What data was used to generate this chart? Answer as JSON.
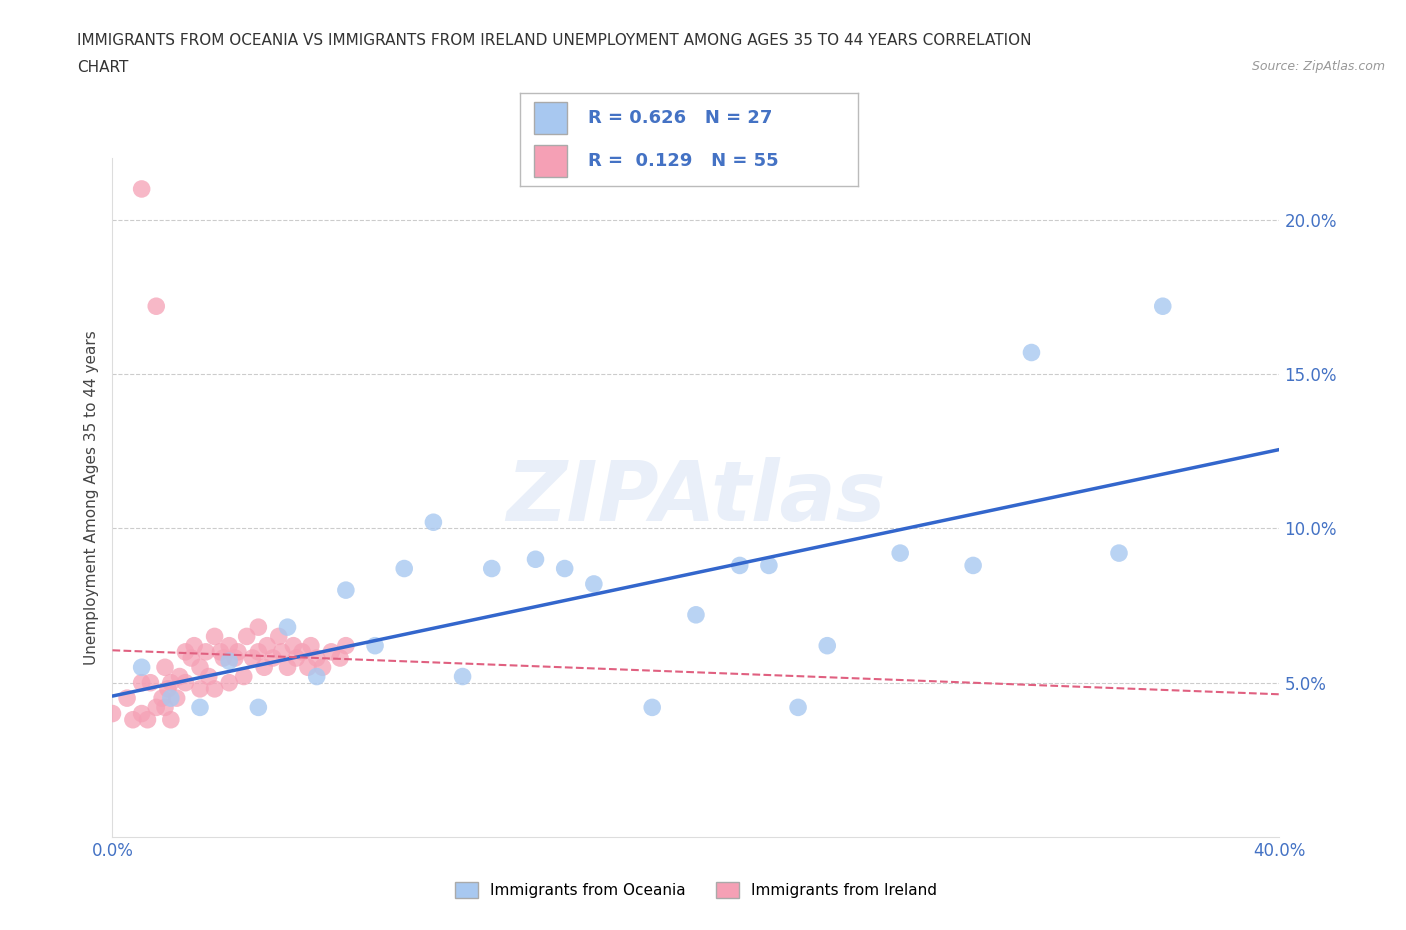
{
  "title_line1": "IMMIGRANTS FROM OCEANIA VS IMMIGRANTS FROM IRELAND UNEMPLOYMENT AMONG AGES 35 TO 44 YEARS CORRELATION",
  "title_line2": "CHART",
  "source_text": "Source: ZipAtlas.com",
  "watermark": "ZIPAtlas",
  "ylabel": "Unemployment Among Ages 35 to 44 years",
  "xlim": [
    0.0,
    0.4
  ],
  "ylim": [
    0.0,
    0.22
  ],
  "xticks": [
    0.0,
    0.05,
    0.1,
    0.15,
    0.2,
    0.25,
    0.3,
    0.35,
    0.4
  ],
  "yticks": [
    0.05,
    0.1,
    0.15,
    0.2
  ],
  "legend_label_oceania": "Immigrants from Oceania",
  "legend_label_ireland": "Immigrants from Ireland",
  "oceania_color": "#a8c8f0",
  "ireland_color": "#f5a0b5",
  "oceania_line_color": "#3366cc",
  "ireland_line_color": "#e06080",
  "text_color": "#4472c4",
  "grid_color": "#cccccc",
  "background_color": "#ffffff",
  "oceania_R": 0.626,
  "oceania_N": 27,
  "ireland_R": 0.129,
  "ireland_N": 55,
  "oceania_x": [
    0.01,
    0.02,
    0.03,
    0.04,
    0.05,
    0.06,
    0.07,
    0.08,
    0.09,
    0.1,
    0.11,
    0.12,
    0.13,
    0.145,
    0.155,
    0.165,
    0.185,
    0.2,
    0.215,
    0.225,
    0.235,
    0.245,
    0.27,
    0.295,
    0.315,
    0.345,
    0.36
  ],
  "oceania_y": [
    0.055,
    0.045,
    0.042,
    0.057,
    0.042,
    0.068,
    0.052,
    0.08,
    0.062,
    0.087,
    0.102,
    0.052,
    0.087,
    0.09,
    0.087,
    0.082,
    0.042,
    0.072,
    0.088,
    0.088,
    0.042,
    0.062,
    0.092,
    0.088,
    0.157,
    0.092,
    0.172
  ],
  "ireland_x": [
    0.0,
    0.005,
    0.007,
    0.01,
    0.01,
    0.012,
    0.013,
    0.015,
    0.017,
    0.018,
    0.018,
    0.019,
    0.02,
    0.02,
    0.022,
    0.023,
    0.025,
    0.025,
    0.027,
    0.028,
    0.03,
    0.03,
    0.032,
    0.033,
    0.035,
    0.035,
    0.037,
    0.038,
    0.04,
    0.04,
    0.042,
    0.043,
    0.045,
    0.046,
    0.048,
    0.05,
    0.05,
    0.052,
    0.053,
    0.055,
    0.057,
    0.058,
    0.06,
    0.062,
    0.063,
    0.065,
    0.067,
    0.068,
    0.07,
    0.072,
    0.075,
    0.078,
    0.08,
    0.01,
    0.015
  ],
  "ireland_y": [
    0.04,
    0.045,
    0.038,
    0.04,
    0.05,
    0.038,
    0.05,
    0.042,
    0.045,
    0.055,
    0.042,
    0.048,
    0.05,
    0.038,
    0.045,
    0.052,
    0.05,
    0.06,
    0.058,
    0.062,
    0.048,
    0.055,
    0.06,
    0.052,
    0.065,
    0.048,
    0.06,
    0.058,
    0.05,
    0.062,
    0.058,
    0.06,
    0.052,
    0.065,
    0.058,
    0.06,
    0.068,
    0.055,
    0.062,
    0.058,
    0.065,
    0.06,
    0.055,
    0.062,
    0.058,
    0.06,
    0.055,
    0.062,
    0.058,
    0.055,
    0.06,
    0.058,
    0.062,
    0.21,
    0.172
  ]
}
